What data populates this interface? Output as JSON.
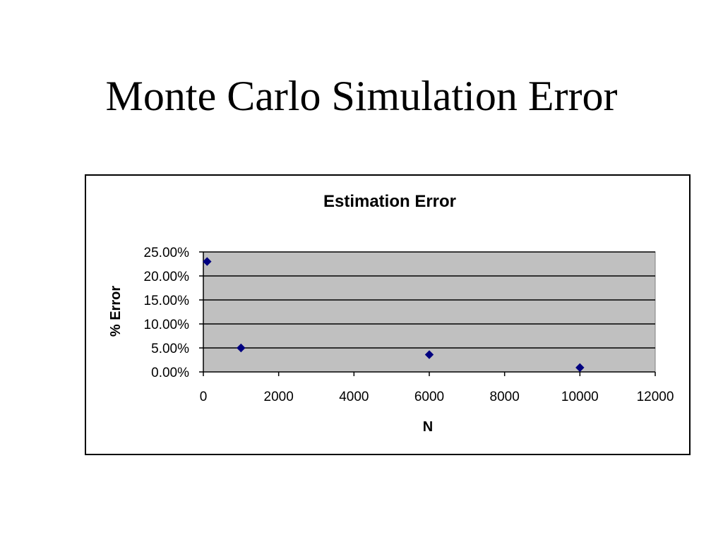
{
  "slide": {
    "title": "Monte Carlo Simulation Error"
  },
  "colors": {
    "plot_area": "#c0c0c0",
    "marker": "#000080",
    "gridline": "#000000"
  },
  "chart_data": {
    "type": "scatter",
    "title": "Estimation Error",
    "xlabel": "N",
    "ylabel": "% Error",
    "xlim": [
      0,
      12000
    ],
    "ylim": [
      0,
      0.25
    ],
    "x_ticks": [
      0,
      2000,
      4000,
      6000,
      8000,
      10000,
      12000
    ],
    "x_tick_labels": [
      "0",
      "2000",
      "4000",
      "6000",
      "8000",
      "10000",
      "12000"
    ],
    "y_ticks": [
      0,
      0.05,
      0.1,
      0.15,
      0.2,
      0.25
    ],
    "y_tick_labels": [
      "0.00%",
      "5.00%",
      "10.00%",
      "15.00%",
      "20.00%",
      "25.00%"
    ],
    "grid": true,
    "legend": "none",
    "marker": "diamond",
    "series": [
      {
        "points": [
          {
            "x": 100,
            "y": 0.23
          },
          {
            "x": 1000,
            "y": 0.05
          },
          {
            "x": 6000,
            "y": 0.036
          },
          {
            "x": 10000,
            "y": 0.009
          }
        ]
      }
    ]
  }
}
